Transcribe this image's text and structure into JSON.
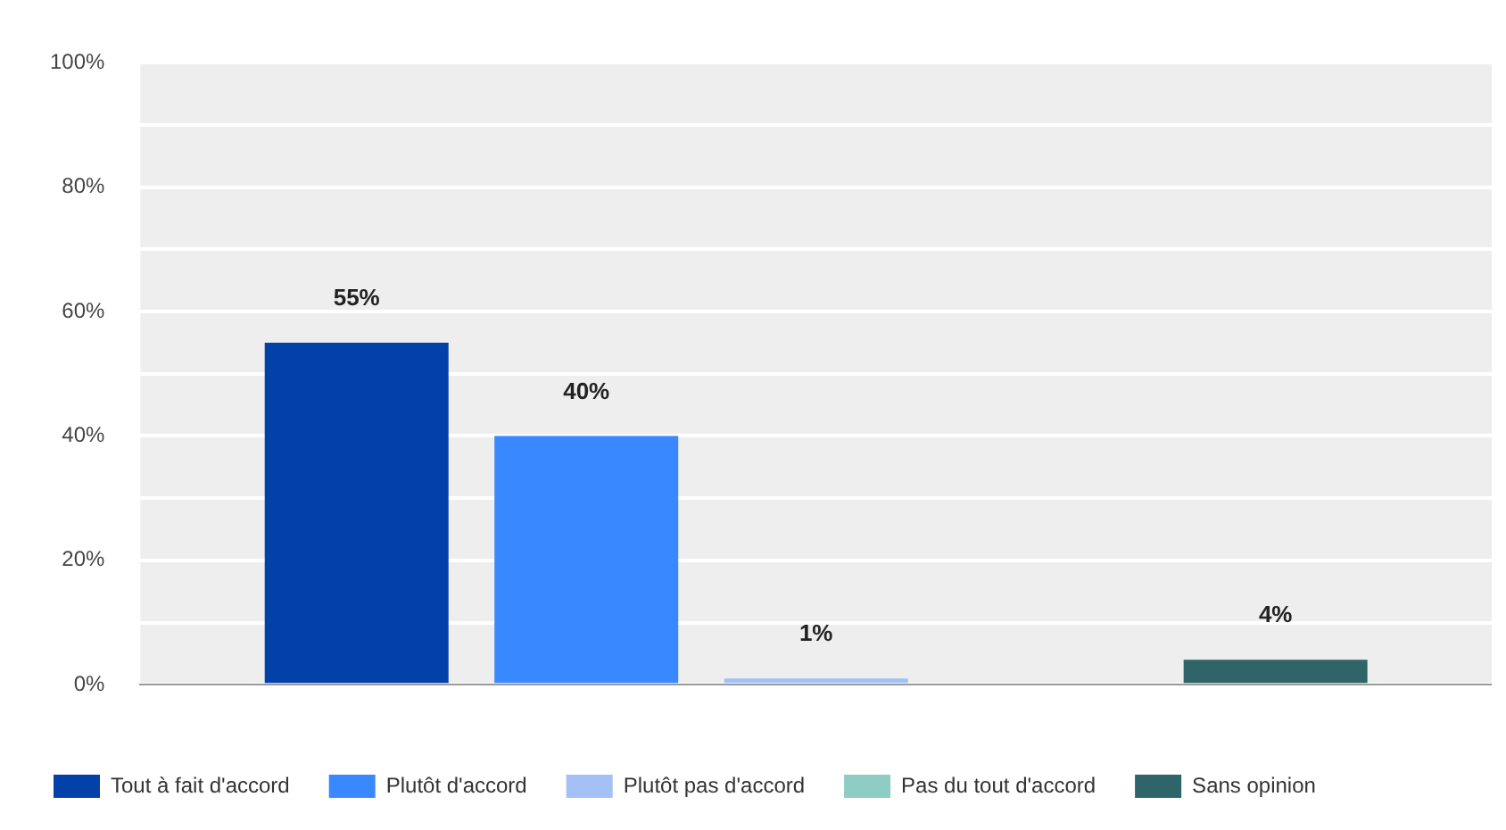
{
  "chart_data": {
    "type": "bar",
    "categories": [
      null
    ],
    "series": [
      {
        "name": "Tout à fait d'accord",
        "color": "#0340a8",
        "values": [
          55
        ],
        "value_labels": [
          "55%"
        ]
      },
      {
        "name": "Plutôt d'accord",
        "color": "#3a88fe",
        "values": [
          40
        ],
        "value_labels": [
          "40%"
        ]
      },
      {
        "name": "Plutôt pas d'accord",
        "color": "#a3c1f5",
        "values": [
          1
        ],
        "value_labels": [
          "1%"
        ]
      },
      {
        "name": "Pas du tout d'accord",
        "color": "#8ecdc4",
        "values": [
          0
        ],
        "value_labels": [
          null
        ]
      },
      {
        "name": "Sans opinion",
        "color": "#2f6468",
        "values": [
          4
        ],
        "value_labels": [
          "4%"
        ]
      }
    ],
    "ylim": [
      0,
      100
    ],
    "yticks": [
      {
        "value": 0,
        "label": "0%"
      },
      {
        "value": 10,
        "label": null
      },
      {
        "value": 20,
        "label": "20%"
      },
      {
        "value": 30,
        "label": null
      },
      {
        "value": 40,
        "label": "40%"
      },
      {
        "value": 50,
        "label": null
      },
      {
        "value": 60,
        "label": "60%"
      },
      {
        "value": 70,
        "label": null
      },
      {
        "value": 80,
        "label": "80%"
      },
      {
        "value": 90,
        "label": null
      },
      {
        "value": 100,
        "label": "100%"
      }
    ],
    "grid": "y",
    "legend": "bottom"
  }
}
